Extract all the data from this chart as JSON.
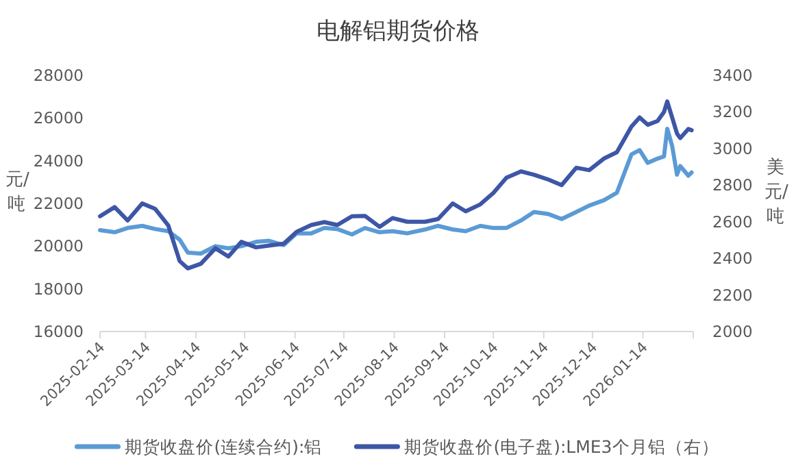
{
  "chart_data": {
    "type": "line",
    "title": "电解铝期货价格",
    "ylabel": "元/吨",
    "y2label": "美元/吨",
    "x": [
      "2025-02-14",
      "2025-02-23",
      "2025-03-03",
      "2025-03-12",
      "2025-03-20",
      "2025-03-28",
      "2025-04-04",
      "2025-04-09",
      "2025-04-17",
      "2025-04-26",
      "2025-05-04",
      "2025-05-12",
      "2025-05-21",
      "2025-05-29",
      "2025-06-07",
      "2025-06-15",
      "2025-06-24",
      "2025-07-02",
      "2025-07-10",
      "2025-07-19",
      "2025-07-27",
      "2025-08-05",
      "2025-08-13",
      "2025-08-22",
      "2025-09-02",
      "2025-09-10",
      "2025-09-19",
      "2025-09-27",
      "2025-10-06",
      "2025-10-14",
      "2025-10-22",
      "2025-10-31",
      "2025-11-08",
      "2025-11-17",
      "2025-11-25",
      "2025-12-04",
      "2025-12-12",
      "2025-12-21",
      "2025-12-29",
      "2026-01-07",
      "2026-01-12",
      "2026-01-17",
      "2026-01-23",
      "2026-01-27",
      "2026-01-29",
      "2026-02-01",
      "2026-02-04",
      "2026-02-06",
      "2026-02-11",
      "2026-02-13"
    ],
    "series": [
      {
        "name": "期货收盘价(连续合约):铝",
        "color": "#5b9bd5",
        "values": [
          20750,
          20650,
          20850,
          20950,
          20800,
          20700,
          20300,
          19700,
          19650,
          20000,
          19900,
          20000,
          20200,
          20250,
          20050,
          20600,
          20600,
          20850,
          20800,
          20550,
          20850,
          20650,
          20700,
          20600,
          20780,
          20950,
          20780,
          20700,
          20950,
          20850,
          20850,
          21200,
          21600,
          21500,
          21270,
          21600,
          21900,
          22150,
          22500,
          24300,
          24500,
          23900,
          24100,
          24200,
          25500,
          24700,
          23350,
          23750,
          23300,
          23450
        ]
      },
      {
        "name": "期货收盘价(电子盘):LME3个月铝（右）",
        "color": "#3e56a6",
        "axis": "y2",
        "values": [
          2630,
          2680,
          2607,
          2700,
          2670,
          2580,
          2385,
          2345,
          2370,
          2455,
          2410,
          2490,
          2460,
          2470,
          2480,
          2545,
          2582,
          2598,
          2582,
          2630,
          2632,
          2572,
          2620,
          2600,
          2600,
          2615,
          2700,
          2657,
          2695,
          2757,
          2840,
          2875,
          2857,
          2830,
          2800,
          2895,
          2882,
          2945,
          2980,
          3120,
          3170,
          3130,
          3150,
          3200,
          3257,
          3170,
          3082,
          3057,
          3107,
          3100
        ]
      }
    ],
    "xlim": [
      "2025-02-14",
      "2026-02-14"
    ],
    "xticks": [
      "2025-02-14",
      "2025-03-14",
      "2025-04-14",
      "2025-05-14",
      "2025-06-14",
      "2025-07-14",
      "2025-08-14",
      "2025-09-14",
      "2025-10-14",
      "2025-11-14",
      "2025-12-14",
      "2026-01-14",
      {
        "value": "2026-02-14",
        "label": null
      }
    ],
    "ylim": [
      16000,
      28000
    ],
    "yticks": [
      16000,
      18000,
      20000,
      22000,
      24000,
      26000,
      28000
    ],
    "y2lim": [
      2000,
      3400
    ],
    "y2ticks": [
      2000,
      2200,
      2400,
      2600,
      2800,
      3000,
      3200,
      3400
    ],
    "grid": false,
    "legend": "bottom",
    "marker": "none",
    "line_style": "solid"
  }
}
